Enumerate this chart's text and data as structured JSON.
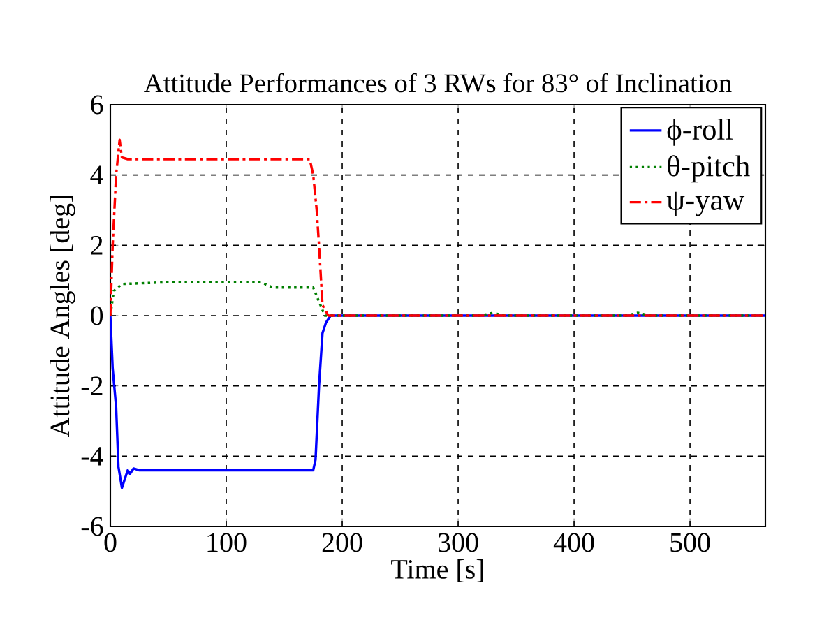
{
  "chart_data": {
    "type": "line",
    "title": "Attitude Performances of 3 RWs for 83° of Inclination",
    "xlabel": "Time [s]",
    "ylabel": "Attitude Angles [deg]",
    "xlim": [
      0,
      565
    ],
    "xticks": [
      0,
      100,
      200,
      300,
      400,
      500
    ],
    "ylim": [
      -6,
      6
    ],
    "yticks": [
      -6,
      -4,
      -2,
      0,
      2,
      4,
      6
    ],
    "grid": true,
    "legend": "top right",
    "series": [
      {
        "name": "ϕ-roll",
        "color": "#0000ff",
        "line_style": "solid",
        "x": [
          0,
          2,
          5,
          7,
          10,
          13,
          15,
          17,
          20,
          25,
          100,
          175,
          177,
          180,
          183,
          186,
          190,
          300,
          400,
          565
        ],
        "values": [
          0,
          -1.5,
          -2.6,
          -4.3,
          -4.9,
          -4.6,
          -4.4,
          -4.5,
          -4.35,
          -4.4,
          -4.4,
          -4.4,
          -4.1,
          -2,
          -0.5,
          -0.2,
          0,
          0,
          0,
          0
        ]
      },
      {
        "name": "θ-pitch",
        "color": "#007f00",
        "line_style": "dotted",
        "x": [
          0,
          3,
          10,
          50,
          130,
          140,
          175,
          180,
          185,
          320,
          330,
          340,
          445,
          455,
          465,
          565
        ],
        "values": [
          0,
          0.7,
          0.9,
          0.95,
          0.95,
          0.8,
          0.8,
          0.4,
          0,
          0,
          0.08,
          0,
          0,
          0.08,
          0,
          0
        ]
      },
      {
        "name": "ψ-yaw",
        "color": "#ff0000",
        "line_style": "dashdot",
        "x": [
          0,
          2,
          5,
          8,
          10,
          15,
          100,
          172,
          175,
          178,
          180,
          183,
          188,
          300,
          400,
          565
        ],
        "values": [
          0,
          2,
          4,
          5,
          4.5,
          4.45,
          4.45,
          4.45,
          4,
          3,
          2,
          0.3,
          0,
          0,
          0,
          0
        ]
      }
    ]
  }
}
